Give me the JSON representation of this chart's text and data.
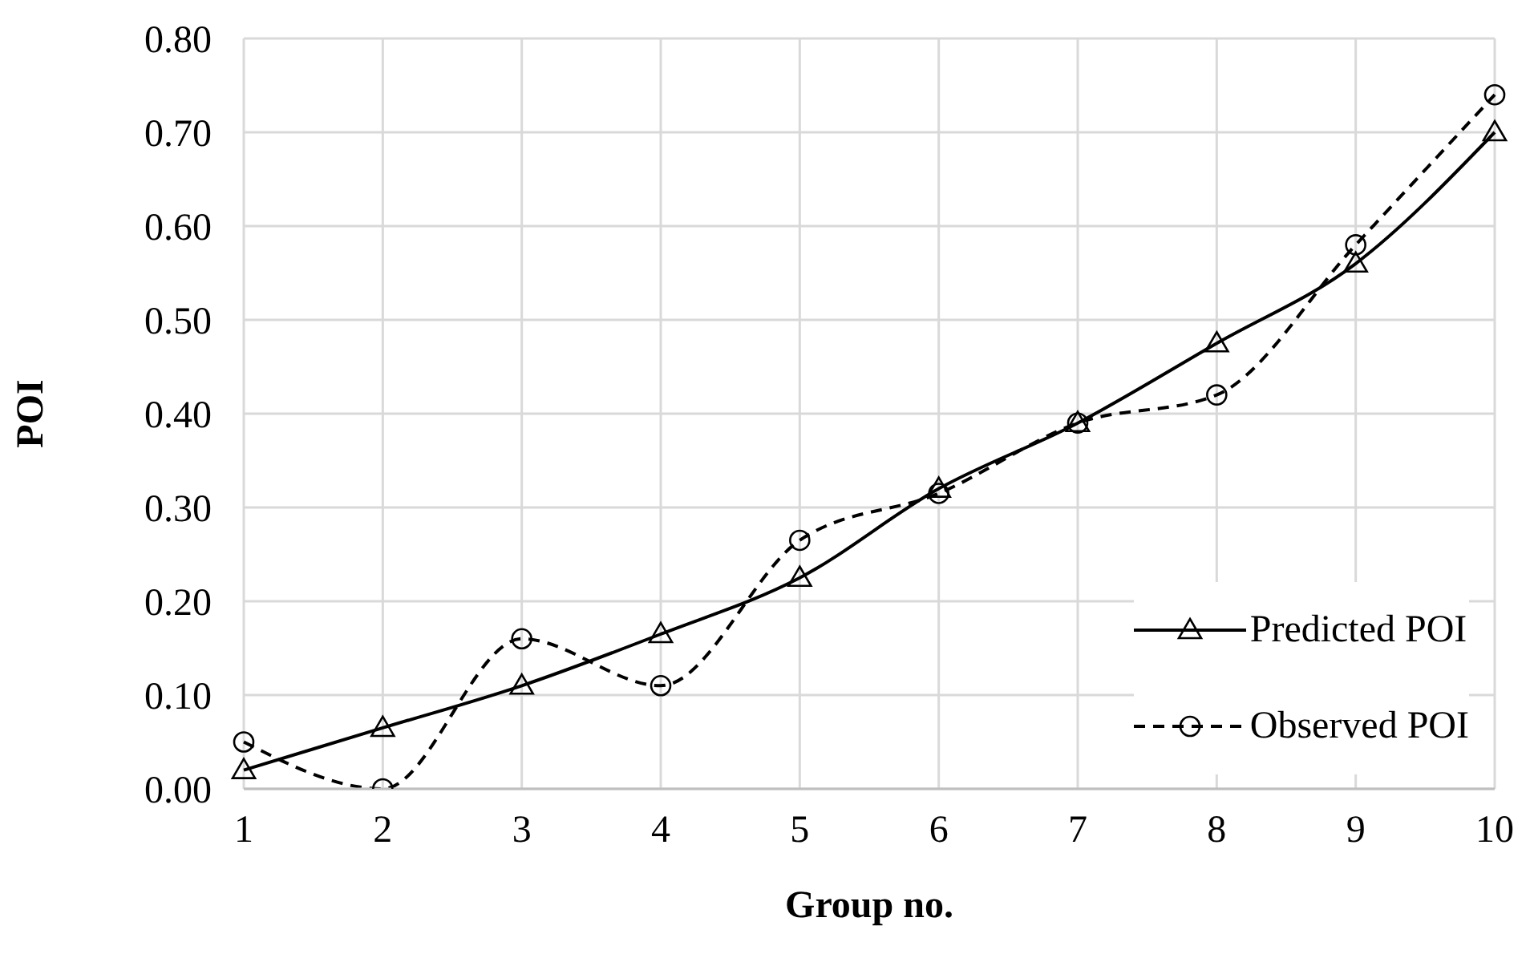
{
  "chart_data": {
    "type": "line",
    "xlabel": "Group no.",
    "ylabel": "POI",
    "categories": [
      "1",
      "2",
      "3",
      "4",
      "5",
      "6",
      "7",
      "8",
      "9",
      "10"
    ],
    "series": [
      {
        "name": "Predicted POI",
        "color": "#000000",
        "marker": "triangle",
        "line_style": "solid",
        "values": [
          0.02,
          0.065,
          0.11,
          0.165,
          0.225,
          0.32,
          0.39,
          0.475,
          0.56,
          0.7
        ]
      },
      {
        "name": "Observed POI",
        "color": "#000000",
        "marker": "circle",
        "line_style": "dashed",
        "values": [
          0.05,
          0.0,
          0.16,
          0.11,
          0.265,
          0.315,
          0.39,
          0.42,
          0.58,
          0.74
        ]
      }
    ],
    "ylim": [
      0,
      0.8
    ],
    "yticks": [
      {
        "value": 0,
        "label": "0.00"
      },
      {
        "value": 0.1,
        "label": "0.10"
      },
      {
        "value": 0.2,
        "label": "0.20"
      },
      {
        "value": 0.3,
        "label": "0.30"
      },
      {
        "value": 0.4,
        "label": "0.40"
      },
      {
        "value": 0.5,
        "label": "0.50"
      },
      {
        "value": 0.6,
        "label": "0.60"
      },
      {
        "value": 0.7,
        "label": "0.70"
      },
      {
        "value": 0.8,
        "label": "0.80"
      }
    ],
    "grid": true,
    "legend": "bottom right"
  }
}
